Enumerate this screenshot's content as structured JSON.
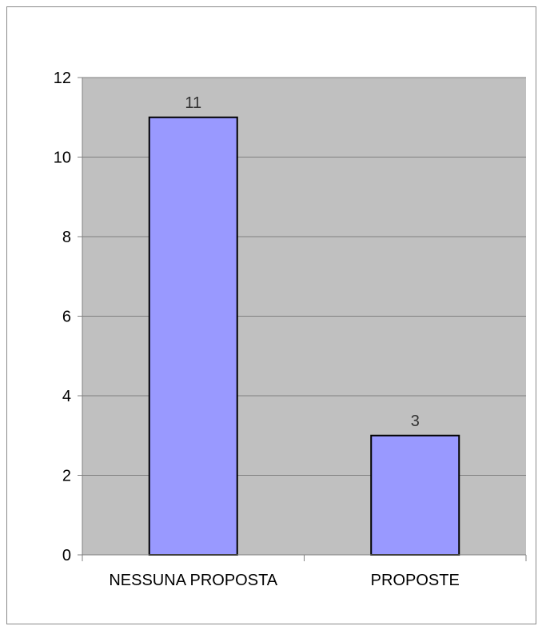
{
  "chart_data": {
    "type": "bar",
    "title": "",
    "xlabel": "",
    "ylabel": "",
    "categories": [
      "NESSUNA PROPOSTA",
      "PROPOSTE"
    ],
    "values": [
      11,
      3
    ],
    "data_labels": [
      "11",
      "3"
    ],
    "ylim": [
      0,
      12
    ],
    "yticks": [
      0,
      2,
      4,
      6,
      8,
      10,
      12
    ],
    "ytick_labels": [
      "0",
      "2",
      "4",
      "6",
      "8",
      "10",
      "12"
    ],
    "grid": true,
    "legend": "none",
    "colors": {
      "plot_background": "#c0c0c0",
      "bar_fill": "#9999ff",
      "bar_stroke": "#000000",
      "gridline": "#808080"
    }
  }
}
